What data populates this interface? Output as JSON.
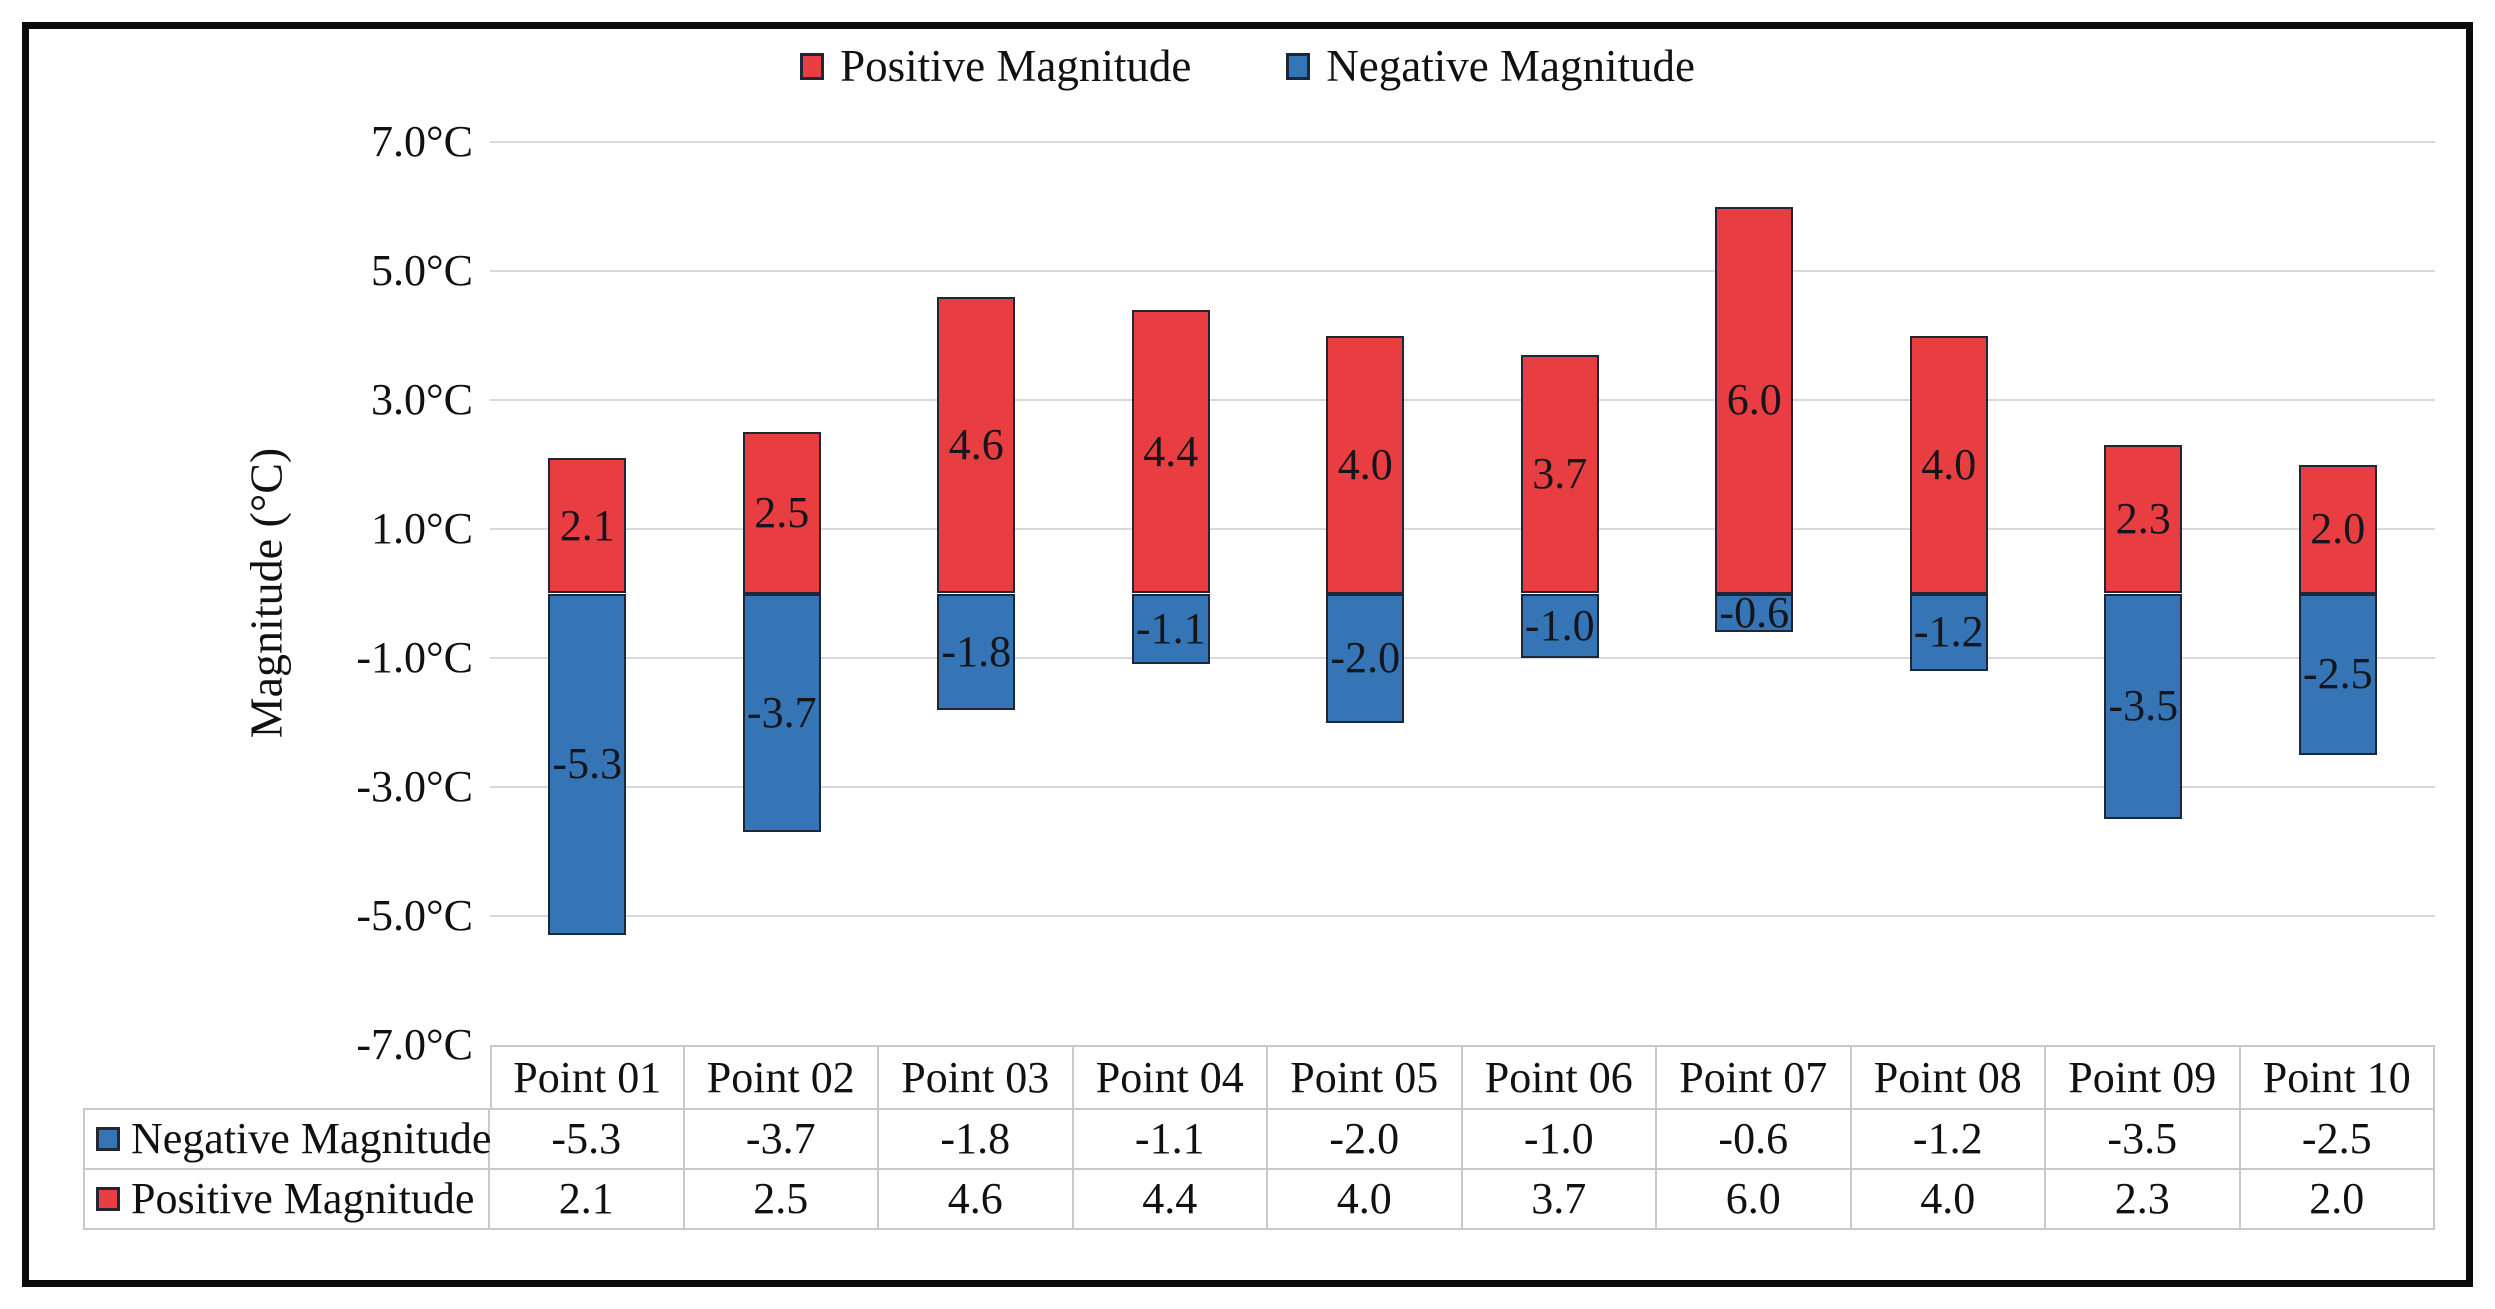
{
  "legend": {
    "items": [
      {
        "label": "Positive Magnitude",
        "color": "#E83E41"
      },
      {
        "label": "Negative Magnitude",
        "color": "#3575B5"
      }
    ]
  },
  "chart_data": {
    "type": "bar",
    "stacked": true,
    "title": "",
    "categories": [
      "Point 01",
      "Point 02",
      "Point 03",
      "Point 04",
      "Point 05",
      "Point 06",
      "Point 07",
      "Point 08",
      "Point 09",
      "Point 10"
    ],
    "series": [
      {
        "name": "Positive Magnitude",
        "color": "#E83E41",
        "values": [
          2.1,
          2.5,
          4.6,
          4.4,
          4.0,
          3.7,
          6.0,
          4.0,
          2.3,
          2.0
        ]
      },
      {
        "name": "Negative Magnitude",
        "color": "#3575B5",
        "values": [
          -5.3,
          -3.7,
          -1.8,
          -1.1,
          -2.0,
          -1.0,
          -0.6,
          -1.2,
          -3.5,
          -2.5
        ]
      }
    ],
    "xlabel": "",
    "ylabel": "Magnitude (°C)",
    "ylim": [
      -7,
      7
    ],
    "ytick_step": 2,
    "ytick_labels": [
      "7.0°C",
      "5.0°C",
      "3.0°C",
      "1.0°C",
      "-1.0°C",
      "-3.0°C",
      "-5.0°C",
      "-7.0°C"
    ],
    "grid": true,
    "legend_position": "top-center",
    "bar_labels_visible": true,
    "data_table": {
      "column_headers": [
        "Point 01",
        "Point 02",
        "Point 03",
        "Point 04",
        "Point 05",
        "Point 06",
        "Point 07",
        "Point 08",
        "Point 09",
        "Point 10"
      ],
      "rows": [
        {
          "label": "Negative Magnitude",
          "swatch_color": "#3575B5",
          "values": [
            "-5.3",
            "-3.7",
            "-1.8",
            "-1.1",
            "-2.0",
            "-1.0",
            "-0.6",
            "-1.2",
            "-3.5",
            "-2.5"
          ]
        },
        {
          "label": "Positive Magnitude",
          "swatch_color": "#E83E41",
          "values": [
            "2.1",
            "2.5",
            "4.6",
            "4.4",
            "4.0",
            "3.7",
            "6.0",
            "4.0",
            "2.3",
            "2.0"
          ]
        }
      ]
    }
  },
  "colors": {
    "positive_fill": "#E83E41",
    "negative_fill": "#3575B5",
    "bar_border": "#1E2638",
    "gridline": "#D9D9D9",
    "table_border": "#C9C9C9",
    "frame_border": "#0B0B0B",
    "text": "#111111"
  }
}
